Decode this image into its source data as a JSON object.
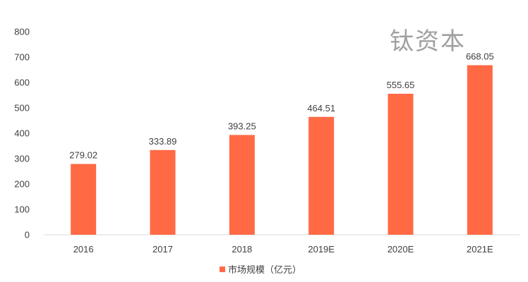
{
  "watermark": "钛资本",
  "chart_data": {
    "type": "bar",
    "categories": [
      "2016",
      "2017",
      "2018",
      "2019E",
      "2020E",
      "2021E"
    ],
    "series": [
      {
        "name": "市场规模（亿元）",
        "values": [
          279.02,
          333.89,
          393.25,
          464.51,
          555.65,
          668.05
        ],
        "labels": [
          "279.02",
          "333.89",
          "393.25",
          "464.51",
          "555.65",
          "668.05"
        ],
        "color": "#FF6A45"
      }
    ],
    "yticks": [
      "0",
      "100",
      "200",
      "300",
      "400",
      "500",
      "600",
      "700",
      "800"
    ],
    "ylim": [
      0,
      800
    ],
    "grid": false,
    "legend": "bottom-center",
    "axis_color": "#d9d9d9"
  }
}
